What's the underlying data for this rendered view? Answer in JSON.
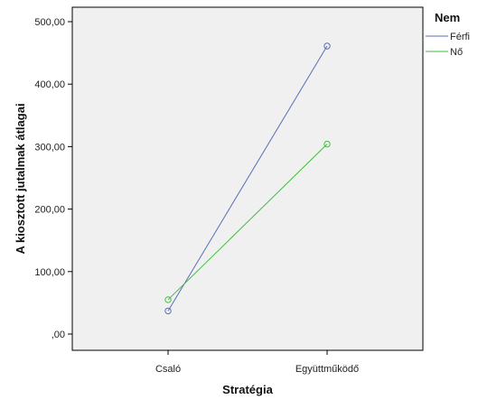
{
  "chart_data": {
    "type": "line",
    "categories": [
      "Csaló",
      "Együttműködő"
    ],
    "series": [
      {
        "name": "Férfi",
        "values": [
          37,
          461
        ],
        "color": "#5b6fb6"
      },
      {
        "name": "Nő",
        "values": [
          55,
          304
        ],
        "color": "#3fbe3f"
      }
    ],
    "xlabel": "Stratégia",
    "ylabel": "A kiosztott jutalmak átlagai",
    "ylim": [
      0,
      500
    ],
    "yticks": [
      {
        "value": 0,
        "label": ",00"
      },
      {
        "value": 100,
        "label": "100,00"
      },
      {
        "value": 200,
        "label": "200,00"
      },
      {
        "value": 300,
        "label": "300,00"
      },
      {
        "value": 400,
        "label": "400,00"
      },
      {
        "value": 500,
        "label": "500,00"
      }
    ],
    "legend": {
      "title": "Nem",
      "position": "right"
    },
    "plot_background": "#f0f0f0",
    "marker": "open-circle",
    "grid": false
  }
}
